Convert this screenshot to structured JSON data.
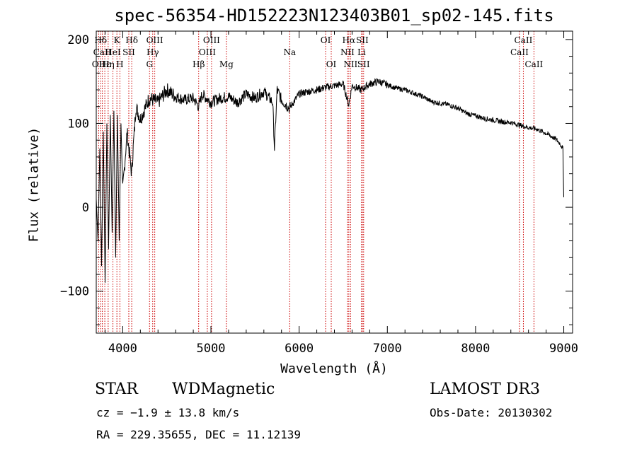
{
  "chart_data": {
    "type": "line",
    "title": "spec-56354-HD152223N123403B01_sp02-145.fits",
    "xlabel": "Wavelength (Å)",
    "ylabel": "Flux (relative)",
    "xlim": [
      3700,
      9100
    ],
    "ylim": [
      -150,
      210
    ],
    "xticks": [
      4000,
      5000,
      6000,
      7000,
      8000,
      9000
    ],
    "yticks": [
      -100,
      0,
      100,
      200
    ],
    "series": [
      {
        "name": "spectrum",
        "x": [
          3700,
          3720,
          3740,
          3760,
          3780,
          3800,
          3820,
          3840,
          3860,
          3880,
          3900,
          3920,
          3940,
          3960,
          3980,
          4000,
          4050,
          4100,
          4150,
          4200,
          4300,
          4400,
          4500,
          4600,
          4700,
          4800,
          4861,
          4900,
          5000,
          5100,
          5200,
          5300,
          5400,
          5500,
          5600,
          5700,
          5720,
          5750,
          5800,
          5890,
          6000,
          6100,
          6200,
          6300,
          6400,
          6500,
          6563,
          6600,
          6700,
          6800,
          6900,
          7000,
          7100,
          7200,
          7300,
          7400,
          7500,
          7600,
          7700,
          7800,
          7900,
          8000,
          8100,
          8200,
          8300,
          8400,
          8500,
          8600,
          8700,
          8800,
          8900,
          8950,
          8990,
          9000
        ],
        "y": [
          10,
          -40,
          70,
          -70,
          90,
          -90,
          100,
          -50,
          110,
          -30,
          115,
          -60,
          110,
          -40,
          100,
          20,
          90,
          40,
          120,
          105,
          130,
          125,
          140,
          132,
          128,
          130,
          120,
          135,
          125,
          130,
          132,
          125,
          135,
          130,
          138,
          125,
          70,
          140,
          128,
          118,
          135,
          138,
          140,
          143,
          145,
          147,
          122,
          145,
          140,
          147,
          150,
          146,
          142,
          140,
          136,
          132,
          126,
          124,
          122,
          118,
          112,
          109,
          106,
          104,
          102,
          101,
          98,
          95,
          93,
          88,
          82,
          77,
          70,
          12
        ]
      }
    ],
    "lines": [
      {
        "label": "Hδ",
        "wl": 3750,
        "row": 0
      },
      {
        "label": "CaII",
        "wl": 3769,
        "row": 1
      },
      {
        "label": "OII",
        "wl": 3727,
        "row": 2
      },
      {
        "label": "Hε",
        "wl": 3797,
        "row": 2
      },
      {
        "label": "Hη",
        "wl": 3835,
        "row": 2
      },
      {
        "label": "K",
        "wl": 3934,
        "row": 0
      },
      {
        "label": "HeI",
        "wl": 3889,
        "row": 1
      },
      {
        "label": "SII",
        "wl": 4069,
        "row": 1
      },
      {
        "label": "H",
        "wl": 3968,
        "row": 2
      },
      {
        "label": "Hδ",
        "wl": 4102,
        "row": 0
      },
      {
        "label": "OIII",
        "wl": 4363,
        "row": 0
      },
      {
        "label": "Hγ",
        "wl": 4340,
        "row": 1
      },
      {
        "label": "G",
        "wl": 4304,
        "row": 2
      },
      {
        "label": "Hβ",
        "wl": 4861,
        "row": 2
      },
      {
        "label": "OIII",
        "wl": 5007,
        "row": 0
      },
      {
        "label": "OIII",
        "wl": 4959,
        "row": 1
      },
      {
        "label": "Mg",
        "wl": 5175,
        "row": 2
      },
      {
        "label": "Na",
        "wl": 5893,
        "row": 1
      },
      {
        "label": "OI",
        "wl": 6300,
        "row": 0
      },
      {
        "label": "OI",
        "wl": 6364,
        "row": 2
      },
      {
        "label": "Hα",
        "wl": 6563,
        "row": 0
      },
      {
        "label": "NII",
        "wl": 6548,
        "row": 1
      },
      {
        "label": "NII",
        "wl": 6583,
        "row": 2
      },
      {
        "label": "SII",
        "wl": 6716,
        "row": 0
      },
      {
        "label": "Li",
        "wl": 6708,
        "row": 1
      },
      {
        "label": "SII",
        "wl": 6731,
        "row": 2
      },
      {
        "label": "CaII",
        "wl": 8542,
        "row": 0
      },
      {
        "label": "CaII",
        "wl": 8498,
        "row": 1
      },
      {
        "label": "CaII",
        "wl": 8662,
        "row": 2
      }
    ]
  },
  "info": {
    "object_class": "STAR",
    "subclass": "WDMagnetic",
    "survey": "LAMOST DR3",
    "cz": "cz = −1.9 ± 13.8 km/s",
    "obs_date": "Obs-Date: 20130302",
    "coords": "RA = 229.35655, DEC =  11.12139"
  },
  "colors": {
    "axis": "#000000",
    "spectrum": "#000000",
    "marker": "#cc0000"
  }
}
